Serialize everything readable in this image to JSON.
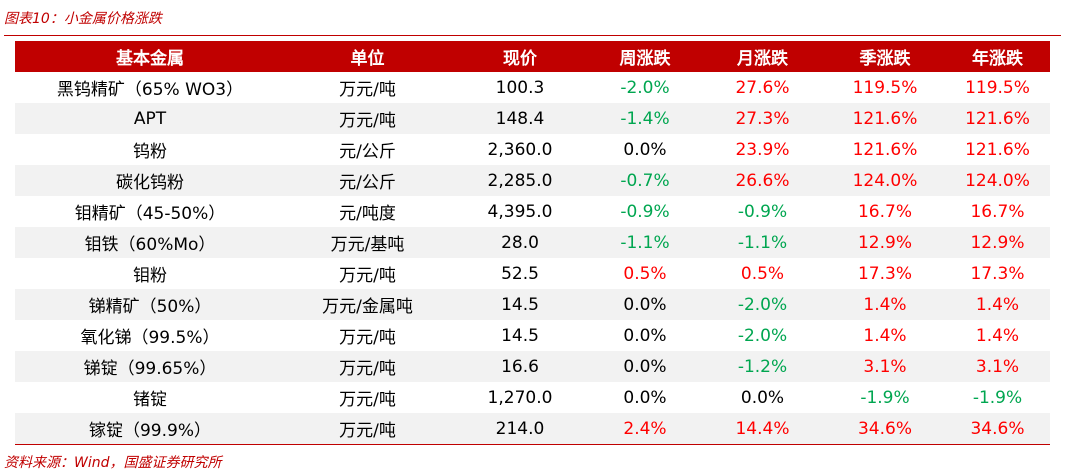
{
  "header": {
    "title": "图表10：小金属价格涨跌"
  },
  "table": {
    "header": [
      "基本金属",
      "单位",
      "现价",
      "周涨跌",
      "月涨跌",
      "季涨跌",
      "年涨跌"
    ],
    "rows": [
      [
        "黑钨精矿（65% WO3）",
        "万元/吨",
        "100.3",
        "-2.0%",
        "27.6%",
        "119.5%",
        "119.5%"
      ],
      [
        "APT",
        "万元/吨",
        "148.4",
        "-1.4%",
        "27.3%",
        "121.6%",
        "121.6%"
      ],
      [
        "钨粉",
        "元/公斤",
        "2,360.0",
        "0.0%",
        "23.9%",
        "121.6%",
        "121.6%"
      ],
      [
        "碳化钨粉",
        "元/公斤",
        "2,285.0",
        "-0.7%",
        "26.6%",
        "124.0%",
        "124.0%"
      ],
      [
        "钼精矿（45-50%）",
        "元/吨度",
        "4,395.0",
        "-0.9%",
        "-0.9%",
        "16.7%",
        "16.7%"
      ],
      [
        "钼铁（60%Mo）",
        "万元/基吨",
        "28.0",
        "-1.1%",
        "-1.1%",
        "12.9%",
        "12.9%"
      ],
      [
        "钼粉",
        "万元/吨",
        "52.5",
        "0.5%",
        "0.5%",
        "17.3%",
        "17.3%"
      ],
      [
        "锑精矿（50%）",
        "万元/金属吨",
        "14.5",
        "0.0%",
        "-2.0%",
        "1.4%",
        "1.4%"
      ],
      [
        "氧化锑（99.5%）",
        "万元/吨",
        "14.5",
        "0.0%",
        "-2.0%",
        "1.4%",
        "1.4%"
      ],
      [
        "锑锭（99.65%）",
        "万元/吨",
        "16.6",
        "0.0%",
        "-1.2%",
        "3.1%",
        "3.1%"
      ],
      [
        "锗锭",
        "万元/吨",
        "1,270.0",
        "0.0%",
        "0.0%",
        "-1.9%",
        "-1.9%"
      ],
      [
        "镓锭（99.9%）",
        "万元/吨",
        "214.0",
        "2.4%",
        "14.4%",
        "34.6%",
        "34.6%"
      ]
    ]
  },
  "footer": {
    "source": "资料来源：Wind，国盛证券研究所"
  }
}
